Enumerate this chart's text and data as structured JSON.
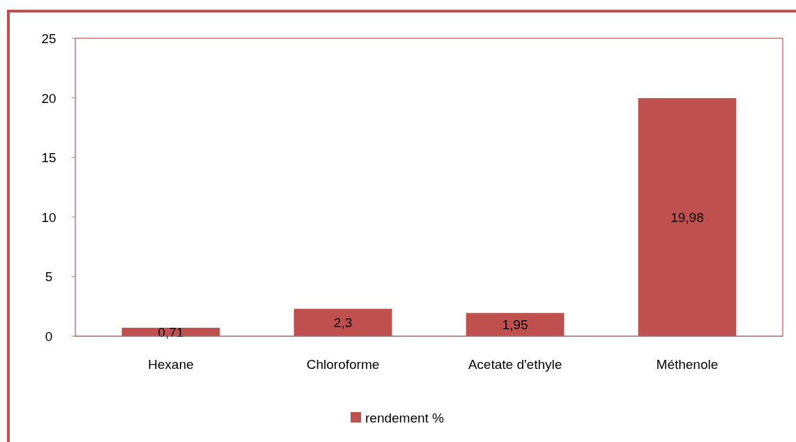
{
  "chart_data": {
    "type": "bar",
    "categories": [
      "Hexane",
      "Chloroforme",
      "Acetate d'ethyle",
      "Méthenole"
    ],
    "series": [
      {
        "name": "rendement %",
        "color": "#c0504d",
        "values": [
          0.71,
          2.3,
          1.95,
          19.98
        ],
        "value_labels": [
          "0,71",
          "2,3",
          "1,95",
          "19,98"
        ]
      }
    ],
    "ylim": [
      0,
      25
    ],
    "yticks": [
      0,
      5,
      10,
      15,
      20,
      25
    ],
    "grid": false,
    "legend": "bottom"
  }
}
